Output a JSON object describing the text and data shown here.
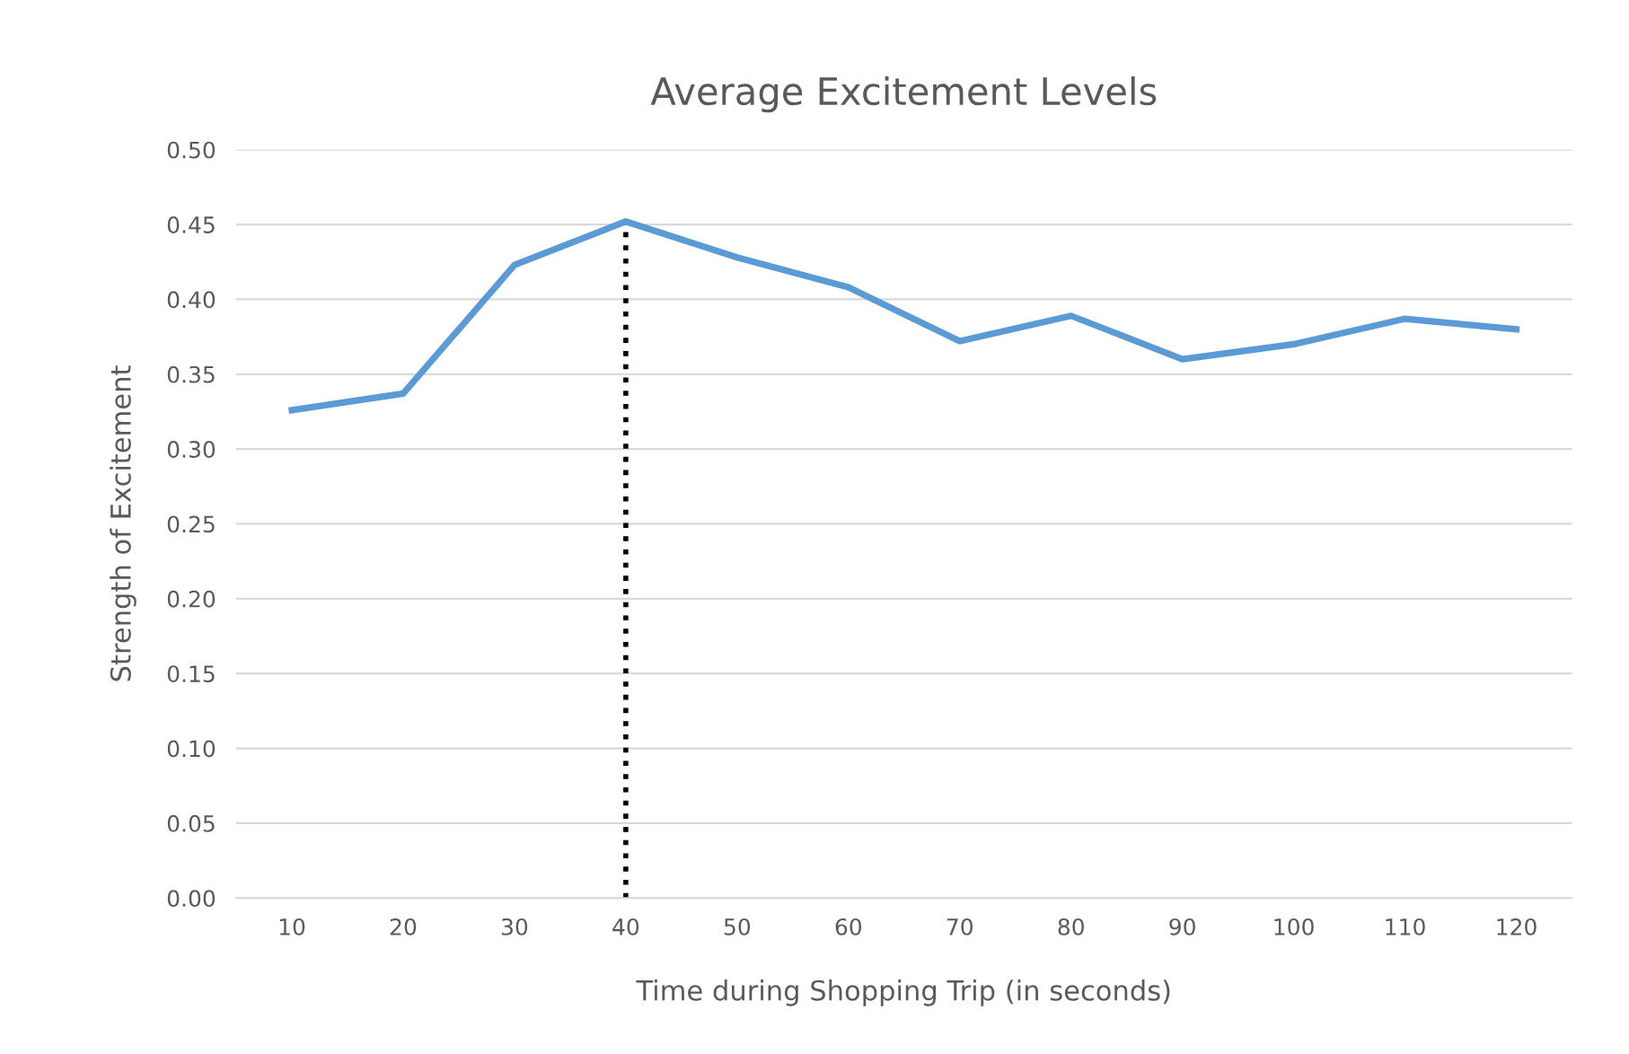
{
  "chart_data": {
    "type": "line",
    "title": "Average Excitement Levels",
    "xlabel": "Time during Shopping Trip (in seconds)",
    "ylabel": "Strength of Excitement",
    "x": [
      10,
      20,
      30,
      40,
      50,
      60,
      70,
      80,
      90,
      100,
      110,
      120
    ],
    "series": [
      {
        "color": "#5b9bd5",
        "values": [
          0.326,
          0.337,
          0.423,
          0.452,
          0.428,
          0.408,
          0.372,
          0.389,
          0.36,
          0.37,
          0.387,
          0.38
        ]
      }
    ],
    "xlim": [
      5,
      125
    ],
    "xticks": [
      10,
      20,
      30,
      40,
      50,
      60,
      70,
      80,
      90,
      100,
      110,
      120
    ],
    "ylim": [
      0,
      0.5
    ],
    "yticks": [
      {
        "value": 0,
        "label": "0.00"
      },
      {
        "value": 0.05,
        "label": "0.05"
      },
      {
        "value": 0.1,
        "label": "0.10"
      },
      {
        "value": 0.15,
        "label": "0.15"
      },
      {
        "value": 0.2,
        "label": "0.20"
      },
      {
        "value": 0.25,
        "label": "0.25"
      },
      {
        "value": 0.3,
        "label": "0.30"
      },
      {
        "value": 0.35,
        "label": "0.35"
      },
      {
        "value": 0.4,
        "label": "0.40"
      },
      {
        "value": 0.45,
        "label": "0.45"
      },
      {
        "value": 0.5,
        "label": "0.50"
      }
    ],
    "grid": "y",
    "marker": "none",
    "line_style": "solid",
    "ref_lines": [
      {
        "axis": "x",
        "value": 40,
        "color": "#000000",
        "line_style": "dotted"
      }
    ]
  }
}
